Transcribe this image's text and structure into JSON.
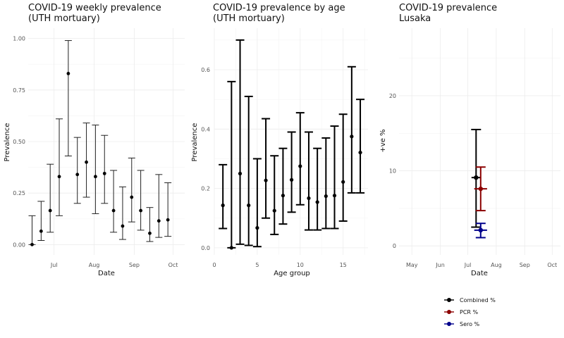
{
  "chart_data": [
    {
      "type": "errorbar",
      "title": "COVID-19 weekly prevalence",
      "subtitle": "(UTH mortuary)",
      "xlabel": "Date",
      "ylabel": "Prevalence",
      "ylim": [
        0,
        1
      ],
      "y_ticks": [
        "0.00",
        "0.25",
        "0.50",
        "0.75",
        "1.00"
      ],
      "x_ticks": [
        "Jul",
        "Aug",
        "Sep",
        "Oct"
      ],
      "x_range": [
        "2020-06-11",
        "2020-10-10"
      ],
      "grid": true,
      "points": [
        {
          "x": "2020-06-14",
          "y": 0.0,
          "low": 0.0,
          "high": 0.14
        },
        {
          "x": "2020-06-21",
          "y": 0.065,
          "low": 0.02,
          "high": 0.21
        },
        {
          "x": "2020-06-28",
          "y": 0.165,
          "low": 0.06,
          "high": 0.39
        },
        {
          "x": "2020-07-05",
          "y": 0.33,
          "low": 0.14,
          "high": 0.61
        },
        {
          "x": "2020-07-12",
          "y": 0.83,
          "low": 0.43,
          "high": 0.99
        },
        {
          "x": "2020-07-19",
          "y": 0.34,
          "low": 0.2,
          "high": 0.52
        },
        {
          "x": "2020-07-26",
          "y": 0.4,
          "low": 0.23,
          "high": 0.59
        },
        {
          "x": "2020-08-02",
          "y": 0.33,
          "low": 0.15,
          "high": 0.58
        },
        {
          "x": "2020-08-09",
          "y": 0.345,
          "low": 0.2,
          "high": 0.53
        },
        {
          "x": "2020-08-16",
          "y": 0.165,
          "low": 0.06,
          "high": 0.36
        },
        {
          "x": "2020-08-23",
          "y": 0.09,
          "low": 0.025,
          "high": 0.28
        },
        {
          "x": "2020-08-30",
          "y": 0.23,
          "low": 0.11,
          "high": 0.42
        },
        {
          "x": "2020-09-06",
          "y": 0.165,
          "low": 0.07,
          "high": 0.36
        },
        {
          "x": "2020-09-13",
          "y": 0.055,
          "low": 0.015,
          "high": 0.18
        },
        {
          "x": "2020-09-20",
          "y": 0.115,
          "low": 0.035,
          "high": 0.34
        },
        {
          "x": "2020-09-27",
          "y": 0.12,
          "low": 0.04,
          "high": 0.3
        }
      ]
    },
    {
      "type": "errorbar",
      "title": "COVID-19 prevalence by age",
      "subtitle": "(UTH mortuary)",
      "xlabel": "Age group",
      "ylabel": "Prevalence",
      "xlim": [
        0,
        17.9
      ],
      "ylim": [
        0,
        0.75
      ],
      "x_ticks": [
        "0",
        "5",
        "10",
        "15"
      ],
      "y_ticks": [
        "0.0",
        "0.2",
        "0.4",
        "0.6"
      ],
      "grid": true,
      "points": [
        {
          "x": 1,
          "y": 0.143,
          "low": 0.065,
          "high": 0.28
        },
        {
          "x": 2,
          "y": 0.0,
          "low": 0.0,
          "high": 0.56
        },
        {
          "x": 3,
          "y": 0.25,
          "low": 0.012,
          "high": 0.7
        },
        {
          "x": 4,
          "y": 0.143,
          "low": 0.008,
          "high": 0.51
        },
        {
          "x": 5,
          "y": 0.067,
          "low": 0.004,
          "high": 0.3
        },
        {
          "x": 6,
          "y": 0.227,
          "low": 0.1,
          "high": 0.435
        },
        {
          "x": 7,
          "y": 0.125,
          "low": 0.045,
          "high": 0.31
        },
        {
          "x": 8,
          "y": 0.176,
          "low": 0.08,
          "high": 0.335
        },
        {
          "x": 9,
          "y": 0.229,
          "low": 0.12,
          "high": 0.39
        },
        {
          "x": 10,
          "y": 0.275,
          "low": 0.145,
          "high": 0.455
        },
        {
          "x": 11,
          "y": 0.167,
          "low": 0.06,
          "high": 0.39
        },
        {
          "x": 12,
          "y": 0.154,
          "low": 0.06,
          "high": 0.335
        },
        {
          "x": 13,
          "y": 0.174,
          "low": 0.065,
          "high": 0.37
        },
        {
          "x": 14,
          "y": 0.176,
          "low": 0.065,
          "high": 0.41
        },
        {
          "x": 15,
          "y": 0.222,
          "low": 0.09,
          "high": 0.45
        },
        {
          "x": 16,
          "y": 0.375,
          "low": 0.185,
          "high": 0.61
        },
        {
          "x": 17,
          "y": 0.321,
          "low": 0.185,
          "high": 0.5
        }
      ]
    },
    {
      "type": "errorbar",
      "title": "COVID-19 prevalence",
      "subtitle": "Lusaka",
      "xlabel": "Date",
      "ylabel": "+ve %",
      "ylim": [
        -1.2,
        29
      ],
      "x_range": [
        "2020-04-17",
        "2020-10-10"
      ],
      "x_ticks": [
        "May",
        "Jun",
        "Jul",
        "Aug",
        "Sep",
        "Oct"
      ],
      "y_ticks": [
        "0",
        "10",
        "20"
      ],
      "grid": true,
      "legend_position": "bottom",
      "series": [
        {
          "name": "Combined %",
          "color": "#000000",
          "x": "2020-07-10",
          "xmin": "2020-07-05",
          "xmax": "2020-07-15",
          "y": 9.1,
          "low": 2.5,
          "high": 15.5
        },
        {
          "name": "PCR %",
          "color": "#8b0000",
          "x": "2020-07-15",
          "xmin": "2020-07-08",
          "xmax": "2020-07-22",
          "y": 7.6,
          "low": 4.7,
          "high": 10.5
        },
        {
          "name": "Sero %",
          "color": "#00008b",
          "x": "2020-07-15",
          "xmin": "2020-07-08",
          "xmax": "2020-07-22",
          "y": 2.1,
          "low": 1.1,
          "high": 3.0
        }
      ]
    }
  ]
}
